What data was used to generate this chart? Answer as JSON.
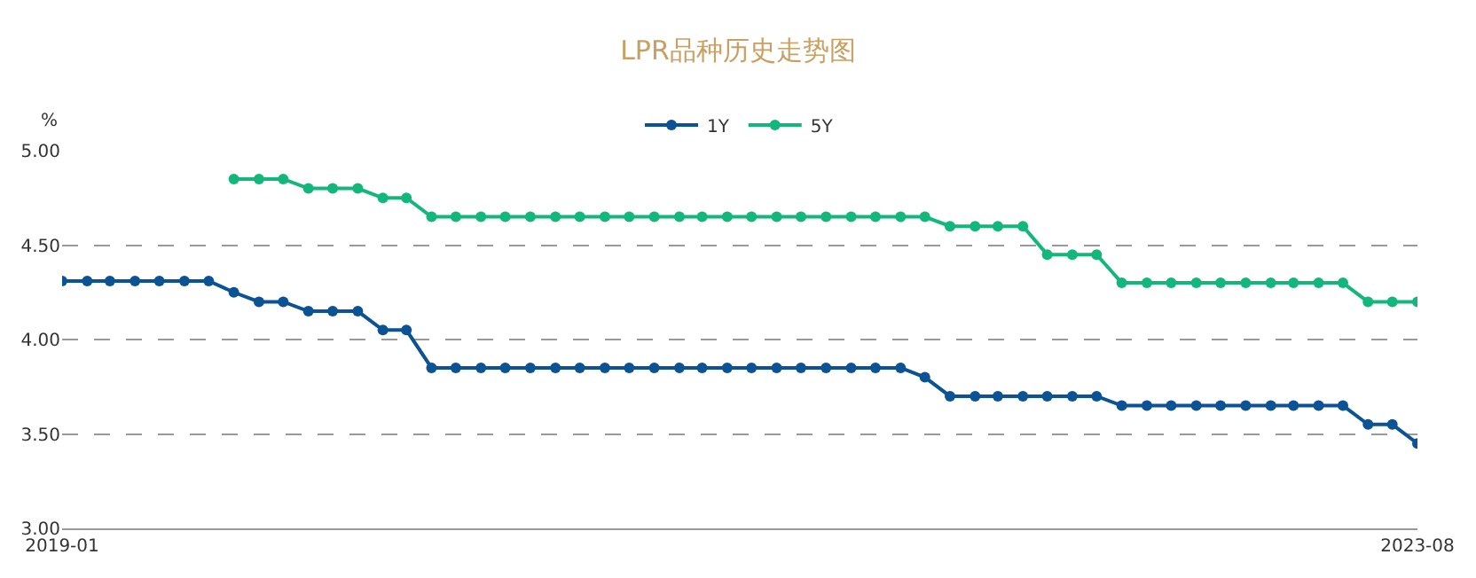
{
  "chart_data": {
    "type": "line",
    "title": "LPR品种历史走势图",
    "ylabel": "%",
    "x": [
      "2019-01",
      "2019-02",
      "2019-03",
      "2019-04",
      "2019-05",
      "2019-06",
      "2019-07",
      "2019-08",
      "2019-09",
      "2019-10",
      "2019-11",
      "2019-12",
      "2020-01",
      "2020-02",
      "2020-03",
      "2020-04",
      "2020-05",
      "2020-06",
      "2020-07",
      "2020-08",
      "2020-09",
      "2020-10",
      "2020-11",
      "2020-12",
      "2021-01",
      "2021-02",
      "2021-03",
      "2021-04",
      "2021-05",
      "2021-06",
      "2021-07",
      "2021-08",
      "2021-09",
      "2021-10",
      "2021-11",
      "2021-12",
      "2022-01",
      "2022-02",
      "2022-03",
      "2022-04",
      "2022-05",
      "2022-06",
      "2022-07",
      "2022-08",
      "2022-09",
      "2022-10",
      "2022-11",
      "2022-12",
      "2023-01",
      "2023-02",
      "2023-03",
      "2023-04",
      "2023-05",
      "2023-06",
      "2023-07",
      "2023-08"
    ],
    "series": [
      {
        "name": "1Y",
        "color": "#0b5394",
        "values": [
          4.31,
          4.31,
          4.31,
          4.31,
          4.31,
          4.31,
          4.31,
          4.25,
          4.2,
          4.2,
          4.15,
          4.15,
          4.15,
          4.05,
          4.05,
          3.85,
          3.85,
          3.85,
          3.85,
          3.85,
          3.85,
          3.85,
          3.85,
          3.85,
          3.85,
          3.85,
          3.85,
          3.85,
          3.85,
          3.85,
          3.85,
          3.85,
          3.85,
          3.85,
          3.85,
          3.8,
          3.7,
          3.7,
          3.7,
          3.7,
          3.7,
          3.7,
          3.7,
          3.65,
          3.65,
          3.65,
          3.65,
          3.65,
          3.65,
          3.65,
          3.65,
          3.65,
          3.65,
          3.55,
          3.55,
          3.45
        ]
      },
      {
        "name": "5Y",
        "color": "#13b77b",
        "values": [
          null,
          null,
          null,
          null,
          null,
          null,
          null,
          4.85,
          4.85,
          4.85,
          4.8,
          4.8,
          4.8,
          4.75,
          4.75,
          4.65,
          4.65,
          4.65,
          4.65,
          4.65,
          4.65,
          4.65,
          4.65,
          4.65,
          4.65,
          4.65,
          4.65,
          4.65,
          4.65,
          4.65,
          4.65,
          4.65,
          4.65,
          4.65,
          4.65,
          4.65,
          4.6,
          4.6,
          4.6,
          4.6,
          4.45,
          4.45,
          4.45,
          4.3,
          4.3,
          4.3,
          4.3,
          4.3,
          4.3,
          4.3,
          4.3,
          4.3,
          4.3,
          4.2,
          4.2,
          4.2
        ]
      }
    ],
    "xlim": [
      "2019-01",
      "2023-08"
    ],
    "xticks": [
      {
        "value": "2019-01",
        "label": "2019-01"
      },
      {
        "value": "2023-08",
        "label": "2023-08"
      }
    ],
    "ylim": [
      3.0,
      5.0
    ],
    "yticks": [
      {
        "value": 3.0,
        "label": "3.00"
      },
      {
        "value": 3.5,
        "label": "3.50"
      },
      {
        "value": 4.0,
        "label": "4.00"
      },
      {
        "value": 4.5,
        "label": "4.50"
      },
      {
        "value": 5.0,
        "label": "5.00"
      }
    ],
    "grid": "y",
    "legend": "top",
    "marker": "circle",
    "line_style": "solid"
  }
}
